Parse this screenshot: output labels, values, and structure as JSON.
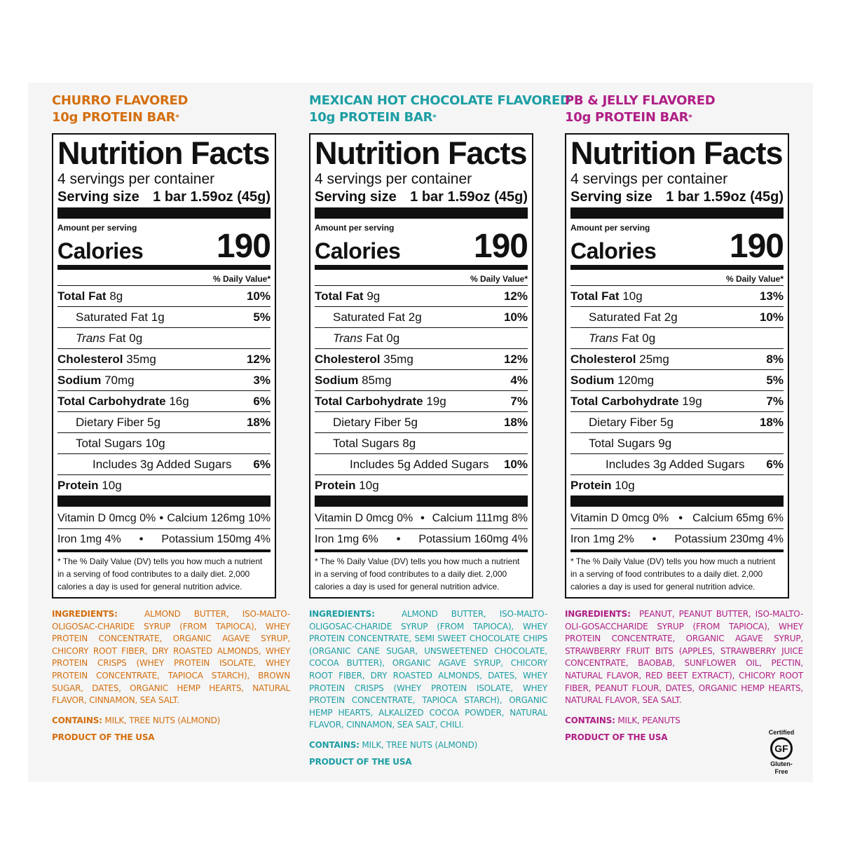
{
  "colors": {
    "churro": "#d46f0f",
    "mexican": "#1c9ea4",
    "pbj": "#b01f86",
    "black": "#111111"
  },
  "columns": [
    {
      "flavor_line1": "CHURRO FLAVORED",
      "flavor_line2": "10g PROTEIN BAR",
      "asterisk": "*",
      "title": "Nutrition Facts",
      "servings": "4 servings per container",
      "serving_size_label": "Serving size",
      "serving_size_value": "1 bar 1.59oz (45g)",
      "amount_per_serving": "Amount per serving",
      "calories_label": "Calories",
      "calories": "190",
      "dv_header": "% Daily Value*",
      "total_fat": {
        "label": "Total Fat",
        "amt": "8g",
        "pct": "10%"
      },
      "sat_fat": {
        "label": "Saturated Fat",
        "amt": "1g",
        "pct": "5%"
      },
      "trans_fat": {
        "label": "Trans",
        "label2": "Fat",
        "amt": "0g"
      },
      "cholesterol": {
        "label": "Cholesterol",
        "amt": "35mg",
        "pct": "12%"
      },
      "sodium": {
        "label": "Sodium",
        "amt": "70mg",
        "pct": "3%"
      },
      "carb": {
        "label": "Total Carbohydrate",
        "amt": "16g",
        "pct": "6%"
      },
      "fiber": {
        "label": "Dietary Fiber",
        "amt": "5g",
        "pct": "18%"
      },
      "sugars": {
        "label": "Total Sugars",
        "amt": "10g"
      },
      "added": {
        "label": "Includes 3g Added Sugars",
        "pct": "6%"
      },
      "protein": {
        "label": "Protein",
        "amt": "10g"
      },
      "vit_d": "Vitamin D 0mcg 0%",
      "calcium": "Calcium 126mg 10%",
      "iron": "Iron 1mg 4%",
      "potassium": "Potassium 150mg 4%",
      "bullet": "•",
      "footnote": "* The % Daily Value (DV) tells you how much a nutrient in a serving of food contributes to a daily diet. 2,000 calories a day is used for general nutrition advice.",
      "ingredients_label": "INGREDIENTS:",
      "ingredients": "ALMOND BUTTER, ISO-MALTO-OLIGOSAC-CHARIDE SYRUP (FROM TAPIOCA), WHEY PROTEIN CONCENTRATE, ORGANIC AGAVE SYRUP, CHICORY ROOT FIBER, DRY ROASTED ALMONDS, WHEY PROTEIN CRISPS (WHEY PROTEIN ISOLATE, WHEY PROTEIN CONCENTRATE, TAPIOCA STARCH), BROWN SUGAR, DATES, ORGANIC HEMP HEARTS, NATURAL FLAVOR, CINNAMON, SEA SALT.",
      "contains_label": "CONTAINS:",
      "contains": "MILK, TREE NUTS (ALMOND)",
      "product": "PRODUCT OF THE USA"
    },
    {
      "flavor_line1": "MEXICAN HOT CHOCOLATE FLAVORED",
      "flavor_line2": "10g PROTEIN BAR",
      "asterisk": "*",
      "title": "Nutrition Facts",
      "servings": "4 servings per container",
      "serving_size_label": "Serving size",
      "serving_size_value": "1 bar 1.59oz (45g)",
      "amount_per_serving": "Amount per serving",
      "calories_label": "Calories",
      "calories": "190",
      "dv_header": "% Daily Value*",
      "total_fat": {
        "label": "Total Fat",
        "amt": "9g",
        "pct": "12%"
      },
      "sat_fat": {
        "label": "Saturated Fat",
        "amt": "2g",
        "pct": "10%"
      },
      "trans_fat": {
        "label": "Trans",
        "label2": "Fat",
        "amt": "0g"
      },
      "cholesterol": {
        "label": "Cholesterol",
        "amt": "35mg",
        "pct": "12%"
      },
      "sodium": {
        "label": "Sodium",
        "amt": "85mg",
        "pct": "4%"
      },
      "carb": {
        "label": "Total Carbohydrate",
        "amt": "19g",
        "pct": "7%"
      },
      "fiber": {
        "label": "Dietary Fiber",
        "amt": "5g",
        "pct": "18%"
      },
      "sugars": {
        "label": "Total Sugars",
        "amt": "8g"
      },
      "added": {
        "label": "Includes 5g Added Sugars",
        "pct": "10%"
      },
      "protein": {
        "label": "Protein",
        "amt": "10g"
      },
      "vit_d": "Vitamin D 0mcg 0%",
      "calcium": "Calcium 111mg 8%",
      "iron": "Iron 1mg 6%",
      "potassium": "Potassium 160mg 4%",
      "bullet": "•",
      "footnote": "* The % Daily Value (DV) tells you how much a nutrient in a serving of food contributes to a daily diet. 2,000 calories a day is used for general nutrition advice.",
      "ingredients_label": "INGREDIENTS:",
      "ingredients": "ALMOND BUTTER, ISO-MALTO-OLIGOSAC-CHARIDE SYRUP (FROM TAPIOCA), WHEY PROTEIN CONCENTRATE, SEMI SWEET CHOCOLATE CHIPS (ORGANIC CANE SUGAR, UNSWEETENED CHOCOLATE, COCOA BUTTER), ORGANIC AGAVE SYRUP, CHICORY ROOT FIBER, DRY ROASTED ALMONDS, DATES, WHEY PROTEIN CRISPS (WHEY PROTEIN ISOLATE, WHEY PROTEIN CONCENTRATE, TAPIOCA STARCH), ORGANIC HEMP HEARTS, ALKALIZED COCOA POWDER, NATURAL FLAVOR, CINNAMON, SEA SALT, CHILI.",
      "contains_label": "CONTAINS:",
      "contains": "MILK, TREE NUTS (ALMOND)",
      "product": "PRODUCT OF THE USA"
    },
    {
      "flavor_line1": "PB & JELLY FLAVORED",
      "flavor_line2": "10g PROTEIN BAR",
      "asterisk": "*",
      "title": "Nutrition Facts",
      "servings": "4 servings per container",
      "serving_size_label": "Serving size",
      "serving_size_value": "1 bar 1.59oz (45g)",
      "amount_per_serving": "Amount per serving",
      "calories_label": "Calories",
      "calories": "190",
      "dv_header": "% Daily Value*",
      "total_fat": {
        "label": "Total Fat",
        "amt": "10g",
        "pct": "13%"
      },
      "sat_fat": {
        "label": "Saturated Fat",
        "amt": "2g",
        "pct": "10%"
      },
      "trans_fat": {
        "label": "Trans",
        "label2": "Fat",
        "amt": "0g"
      },
      "cholesterol": {
        "label": "Cholesterol",
        "amt": "25mg",
        "pct": "8%"
      },
      "sodium": {
        "label": "Sodium",
        "amt": "120mg",
        "pct": "5%"
      },
      "carb": {
        "label": "Total Carbohydrate",
        "amt": "19g",
        "pct": "7%"
      },
      "fiber": {
        "label": "Dietary Fiber",
        "amt": "5g",
        "pct": "18%"
      },
      "sugars": {
        "label": "Total Sugars",
        "amt": "9g"
      },
      "added": {
        "label": "Includes 3g Added Sugars",
        "pct": "6%"
      },
      "protein": {
        "label": "Protein",
        "amt": "10g"
      },
      "vit_d": "Vitamin D 0mcg 0%",
      "calcium": "Calcium 65mg 6%",
      "iron": "Iron 1mg 2%",
      "potassium": "Potassium 230mg 4%",
      "bullet": "•",
      "footnote": "* The % Daily Value (DV) tells you how much a nutrient in a serving of food contributes to a daily diet. 2,000 calories a day is used for general nutrition advice.",
      "ingredients_label": "INGREDIENTS:",
      "ingredients": "PEANUT, PEANUT BUTTER, ISO-MALTO-OLI-GOSACCHARIDE SYRUP (FROM TAPIOCA), WHEY PROTEIN CONCENTRATE, ORGANIC AGAVE SYRUP, STRAWBERRY FRUIT BITS (APPLES, STRAWBERRY JUICE CONCENTRATE, BAOBAB, SUNFLOWER OIL, PECTIN, NATURAL FLAVOR, RED BEET EXTRACT), CHICORY ROOT FIBER, PEANUT FLOUR, DATES, ORGANIC HEMP HEARTS, NATURAL FLAVOR, SEA SALT.",
      "contains_label": "CONTAINS:",
      "contains": "MILK, PEANUTS",
      "product": "PRODUCT OF THE USA"
    }
  ],
  "gf_badge": {
    "top": "Certified",
    "mark": "GF",
    "bottom": "Gluten-Free"
  }
}
